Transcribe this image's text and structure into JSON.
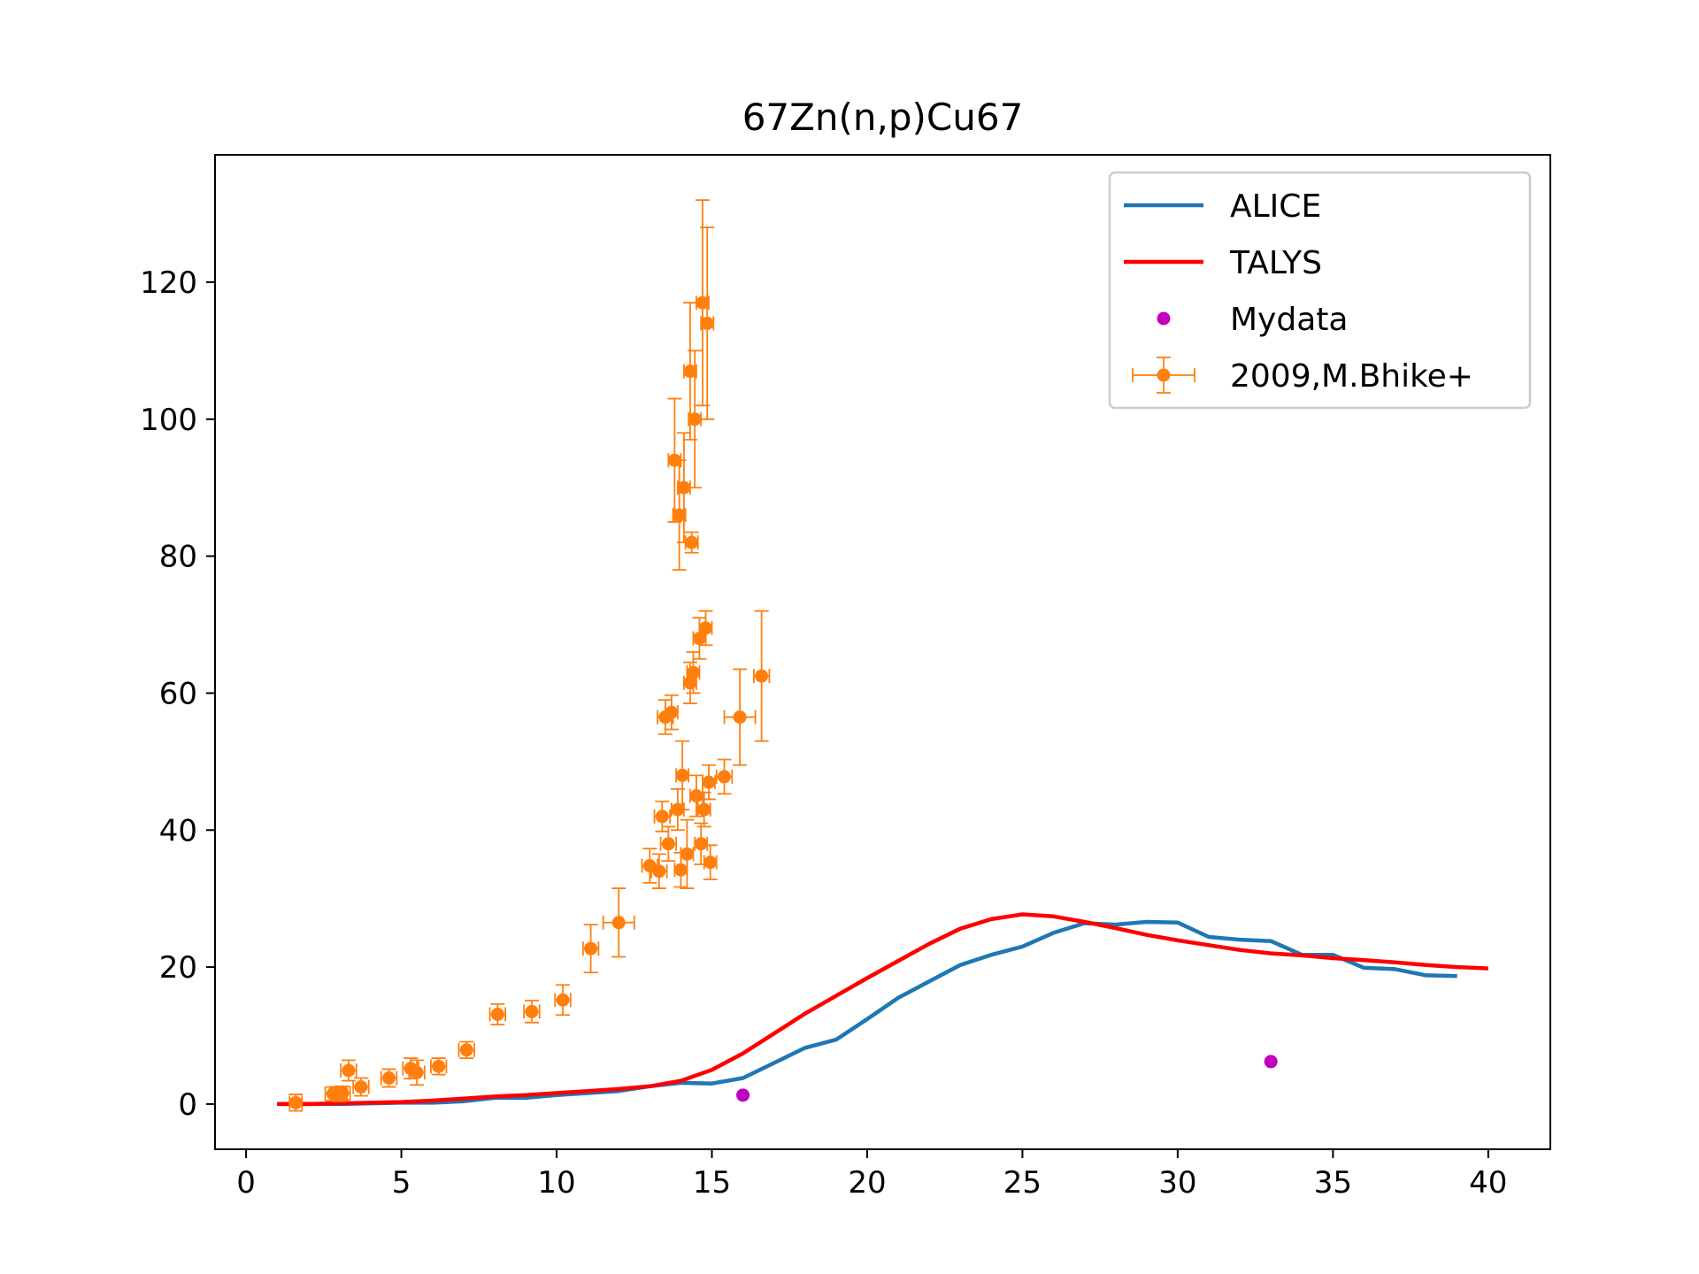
{
  "chart_data": {
    "type": "scatter",
    "title": "67Zn(n,p)Cu67",
    "xlabel": "",
    "ylabel": "",
    "xlim": [
      -1,
      42
    ],
    "ylim": [
      -6.6,
      138.6
    ],
    "xticks": [
      0,
      5,
      10,
      15,
      20,
      25,
      30,
      35,
      40
    ],
    "yticks": [
      0,
      20,
      40,
      60,
      80,
      100,
      120
    ],
    "grid": false,
    "legend_position": "top-right",
    "series": [
      {
        "name": "ALICE",
        "kind": "line",
        "color": "#1f77b4",
        "x": [
          1,
          2,
          3,
          4,
          5,
          6,
          7,
          8,
          9,
          10,
          11,
          12,
          13,
          14,
          15,
          16,
          17,
          18,
          19,
          20,
          21,
          22,
          23,
          24,
          25,
          26,
          27,
          28,
          29,
          30,
          31,
          32,
          33,
          34,
          35,
          36,
          37,
          38,
          39
        ],
        "y": [
          0,
          0,
          0,
          0.1,
          0.2,
          0.2,
          0.4,
          0.9,
          0.9,
          1.3,
          1.6,
          1.9,
          2.6,
          3.1,
          3.0,
          3.8,
          6.0,
          8.2,
          9.4,
          12.4,
          15.5,
          17.9,
          20.3,
          21.8,
          23.0,
          25.0,
          26.4,
          26.2,
          26.6,
          26.5,
          24.4,
          24.0,
          23.8,
          21.8,
          21.8,
          19.9,
          19.7,
          18.8,
          18.7
        ]
      },
      {
        "name": "TALYS",
        "kind": "line",
        "color": "#ff0000",
        "x": [
          1,
          2,
          3,
          4,
          5,
          6,
          7,
          8,
          9,
          10,
          11,
          12,
          13,
          14,
          15,
          16,
          17,
          18,
          19,
          20,
          21,
          22,
          23,
          24,
          25,
          26,
          27,
          28,
          29,
          30,
          31,
          32,
          33,
          34,
          35,
          36,
          37,
          38,
          39,
          40
        ],
        "y": [
          0,
          0,
          0.1,
          0.2,
          0.3,
          0.5,
          0.8,
          1.1,
          1.3,
          1.6,
          1.9,
          2.2,
          2.6,
          3.4,
          5.0,
          7.4,
          10.3,
          13.2,
          15.8,
          18.4,
          20.9,
          23.4,
          25.6,
          27.0,
          27.7,
          27.4,
          26.6,
          25.7,
          24.7,
          23.9,
          23.2,
          22.5,
          22.0,
          21.7,
          21.3,
          21.0,
          20.7,
          20.3,
          20.0,
          19.8
        ]
      },
      {
        "name": "Mydata",
        "kind": "scatter",
        "color": "#bf00bf",
        "points": [
          [
            16.0,
            1.3
          ],
          [
            33.0,
            6.2
          ]
        ]
      },
      {
        "name": "2009,M.Bhike+",
        "kind": "errorbar",
        "color": "#ff7f0e",
        "points": [
          [
            1.6,
            0.2,
            0.2,
            1.2
          ],
          [
            2.8,
            1.5,
            0.25,
            1.0
          ],
          [
            3.0,
            1.4,
            0.25,
            1.0
          ],
          [
            3.1,
            1.6,
            0.25,
            1.0
          ],
          [
            3.3,
            4.9,
            0.25,
            1.5
          ],
          [
            3.7,
            2.5,
            0.25,
            1.3
          ],
          [
            4.6,
            3.8,
            0.25,
            1.3
          ],
          [
            5.3,
            5.2,
            0.25,
            1.5
          ],
          [
            5.5,
            4.6,
            0.25,
            1.8
          ],
          [
            6.2,
            5.5,
            0.25,
            1.2
          ],
          [
            7.1,
            7.9,
            0.25,
            1.2
          ],
          [
            8.1,
            13.1,
            0.25,
            1.5
          ],
          [
            9.2,
            13.5,
            0.25,
            1.6
          ],
          [
            10.2,
            15.2,
            0.25,
            2.2
          ],
          [
            11.1,
            22.7,
            0.25,
            3.5
          ],
          [
            12.0,
            26.5,
            0.5,
            5.0
          ],
          [
            13.0,
            34.8,
            0.25,
            2.5
          ],
          [
            13.3,
            34.0,
            0.25,
            2.5
          ],
          [
            13.4,
            42.0,
            0.25,
            2.2
          ],
          [
            13.5,
            56.5,
            0.25,
            2.5
          ],
          [
            13.6,
            38.0,
            0.25,
            2.5
          ],
          [
            13.7,
            57.2,
            0.2,
            2.5
          ],
          [
            13.8,
            94.0,
            0.2,
            9.0
          ],
          [
            13.9,
            43.0,
            0.2,
            3.0
          ],
          [
            13.95,
            86.0,
            0.2,
            8.0
          ],
          [
            14.0,
            34.2,
            0.2,
            2.5
          ],
          [
            14.05,
            48.0,
            0.2,
            5.0
          ],
          [
            14.1,
            90.0,
            0.2,
            8.0
          ],
          [
            14.2,
            36.5,
            0.2,
            5.0
          ],
          [
            14.3,
            107.0,
            0.2,
            10.0
          ],
          [
            14.3,
            61.5,
            0.2,
            3.0
          ],
          [
            14.35,
            82.0,
            0.2,
            1.5
          ],
          [
            14.4,
            63.0,
            0.2,
            3.0
          ],
          [
            14.45,
            100.0,
            0.2,
            10.0
          ],
          [
            14.5,
            45.0,
            0.2,
            3.0
          ],
          [
            14.6,
            68.0,
            0.2,
            3.0
          ],
          [
            14.65,
            38.0,
            0.2,
            3.0
          ],
          [
            14.7,
            117.0,
            0.2,
            15.0
          ],
          [
            14.75,
            43.0,
            0.2,
            2.5
          ],
          [
            14.8,
            69.5,
            0.2,
            2.5
          ],
          [
            14.85,
            114.0,
            0.2,
            14.0
          ],
          [
            14.9,
            47.0,
            0.2,
            2.5
          ],
          [
            14.95,
            35.3,
            0.2,
            2.5
          ],
          [
            15.4,
            47.8,
            0.25,
            2.5
          ],
          [
            15.9,
            56.5,
            0.5,
            7.0
          ],
          [
            16.6,
            62.5,
            0.25,
            9.5
          ]
        ]
      }
    ]
  },
  "legend": {
    "items": [
      {
        "label": "ALICE",
        "kind": "line",
        "color": "#1f77b4"
      },
      {
        "label": "TALYS",
        "kind": "line",
        "color": "#ff0000"
      },
      {
        "label": "Mydata",
        "kind": "marker",
        "color": "#bf00bf"
      },
      {
        "label": "2009,M.Bhike+",
        "kind": "errorbar",
        "color": "#ff7f0e"
      }
    ]
  }
}
